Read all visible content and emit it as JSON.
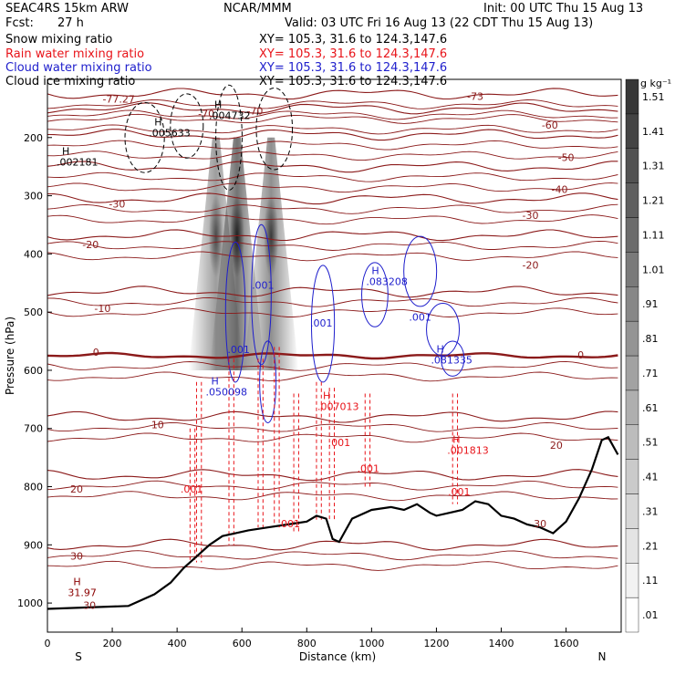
{
  "header": {
    "model": "SEAC4RS 15km ARW",
    "org": "NCAR/MMM",
    "init": "Init: 00 UTC Thu 15 Aug 13",
    "fcst_label": "Fcst:",
    "fcst_value": "27 h",
    "valid": "Valid: 03 UTC Fri 16 Aug 13 (22 CDT Thu 15 Aug 13)"
  },
  "fields": [
    {
      "name": "Snow mixing ratio",
      "xy": "XY= 105.3, 31.6 to 124.3,147.6",
      "color": "#000000"
    },
    {
      "name": "Rain water mixing ratio",
      "xy": "XY= 105.3, 31.6 to 124.3,147.6",
      "color": "#e8141a"
    },
    {
      "name": "Cloud water mixing ratio",
      "xy": "XY= 105.3, 31.6 to 124.3,147.6",
      "color": "#1e1ecc"
    },
    {
      "name": "Cloud ice mixing ratio",
      "xy": "XY= 105.3, 31.6 to 124.3,147.6",
      "color": "#000000"
    }
  ],
  "chart_data": {
    "type": "contour-cross-section",
    "xlabel": "Distance (km)",
    "ylabel": "Pressure (hPa)",
    "xlim": [
      0,
      1770
    ],
    "ylim": [
      1050,
      100
    ],
    "x_ticks": [
      0,
      200,
      400,
      600,
      800,
      1000,
      1200,
      1400,
      1600
    ],
    "y_ticks": [
      200,
      300,
      400,
      500,
      600,
      700,
      800,
      900,
      1000
    ],
    "x_end_left": "S",
    "x_end_right": "N",
    "colorbar": {
      "unit": "g kg⁻¹",
      "levels": [
        ".01",
        ".11",
        ".21",
        ".31",
        ".41",
        ".51",
        ".61",
        ".71",
        ".81",
        ".91",
        "1.01",
        "1.11",
        "1.21",
        "1.31",
        "1.41",
        "1.51"
      ]
    },
    "temperature_contours": [
      {
        "label": "-70",
        "p": 125
      },
      {
        "label": "-60",
        "p": 150
      },
      {
        "label": "-50",
        "p": 195
      },
      {
        "label": "-40",
        "p": 250
      },
      {
        "label": "-30",
        "p": 305
      },
      {
        "label": "-20",
        "p": 368
      },
      {
        "label": "-10",
        "p": 465
      },
      {
        "label": "0",
        "p": 575
      },
      {
        "label": "10",
        "p": 680
      },
      {
        "label": "20",
        "p": 780
      },
      {
        "label": "30",
        "p": 900
      }
    ],
    "temperature_labels": [
      {
        "text": "-77.27",
        "x": 220,
        "p": 140
      },
      {
        "text": "-73",
        "x": 1320,
        "p": 135
      },
      {
        "text": "-70",
        "x": 490,
        "p": 165
      },
      {
        "text": "-70",
        "x": 640,
        "p": 160
      },
      {
        "text": "-60",
        "x": 1550,
        "p": 185
      },
      {
        "text": "-50",
        "x": 1600,
        "p": 240
      },
      {
        "text": "-40",
        "x": 1580,
        "p": 295
      },
      {
        "text": "-30",
        "x": 215,
        "p": 320
      },
      {
        "text": "-30",
        "x": 1490,
        "p": 340
      },
      {
        "text": "-20",
        "x": 133,
        "p": 390
      },
      {
        "text": "-20",
        "x": 1490,
        "p": 425
      },
      {
        "text": "-10",
        "x": 170,
        "p": 500
      },
      {
        "text": "0",
        "x": 150,
        "p": 575
      },
      {
        "text": "0",
        "x": 1645,
        "p": 580
      },
      {
        "text": "10",
        "x": 340,
        "p": 700
      },
      {
        "text": "20",
        "x": 90,
        "p": 810
      },
      {
        "text": "20",
        "x": 1570,
        "p": 735
      },
      {
        "text": "30",
        "x": 90,
        "p": 925
      },
      {
        "text": "30",
        "x": 1520,
        "p": 870
      },
      {
        "text": "30",
        "x": 130,
        "p": 1010
      }
    ],
    "extrema": [
      {
        "text": "H",
        "value": ".002181",
        "x": 45,
        "p": 245,
        "color": "#000000"
      },
      {
        "text": "H",
        "value": ".005633",
        "x": 330,
        "p": 195,
        "color": "#000000"
      },
      {
        "text": "H",
        "value": ".004732",
        "x": 515,
        "p": 165,
        "color": "#000000"
      },
      {
        "text": "H",
        "value": ".083208",
        "x": 1000,
        "p": 450,
        "color": "#1e1ecc"
      },
      {
        "text": "H",
        "value": ".081335",
        "x": 1200,
        "p": 585,
        "color": "#1e1ecc"
      },
      {
        "text": "H",
        "value": ".050098",
        "x": 505,
        "p": 640,
        "color": "#1e1ecc"
      },
      {
        "text": "H",
        "value": ".007013",
        "x": 850,
        "p": 665,
        "color": "#e8141a"
      },
      {
        "text": "H",
        "value": ".001813",
        "x": 1250,
        "p": 740,
        "color": "#e8141a"
      },
      {
        "text": "H",
        "value": "31.97",
        "x": 80,
        "p": 985,
        "color": "#8b0000"
      }
    ],
    "isolabels": [
      {
        "text": ".001",
        "x": 590,
        "p": 570,
        "color": "#1e1ecc"
      },
      {
        "text": ".001",
        "x": 665,
        "p": 460,
        "color": "#1e1ecc"
      },
      {
        "text": ".001",
        "x": 845,
        "p": 525,
        "color": "#1e1ecc"
      },
      {
        "text": ".001",
        "x": 1150,
        "p": 515,
        "color": "#1e1ecc"
      },
      {
        "text": ".001",
        "x": 445,
        "p": 810,
        "color": "#e8141a"
      },
      {
        "text": ".001",
        "x": 745,
        "p": 870,
        "color": "#e8141a"
      },
      {
        "text": ".001",
        "x": 900,
        "p": 730,
        "color": "#e8141a"
      },
      {
        "text": ".001",
        "x": 990,
        "p": 775,
        "color": "#e8141a"
      },
      {
        "text": ".001",
        "x": 1270,
        "p": 815,
        "color": "#e8141a"
      }
    ],
    "terrain": {
      "x": [
        0,
        250,
        330,
        380,
        420,
        460,
        500,
        540,
        580,
        620,
        680,
        740,
        800,
        830,
        860,
        880,
        900,
        940,
        1000,
        1060,
        1100,
        1140,
        1180,
        1200,
        1240,
        1280,
        1320,
        1360,
        1400,
        1440,
        1480,
        1520,
        1560,
        1600,
        1640,
        1680,
        1710,
        1730,
        1760
      ],
      "p": [
        1010,
        1005,
        985,
        965,
        940,
        920,
        900,
        885,
        880,
        875,
        870,
        865,
        860,
        850,
        855,
        890,
        895,
        855,
        840,
        835,
        840,
        830,
        845,
        850,
        845,
        840,
        825,
        830,
        850,
        855,
        865,
        870,
        880,
        860,
        820,
        770,
        720,
        715,
        745
      ]
    },
    "snow_max_g_per_kg": 1.41
  }
}
